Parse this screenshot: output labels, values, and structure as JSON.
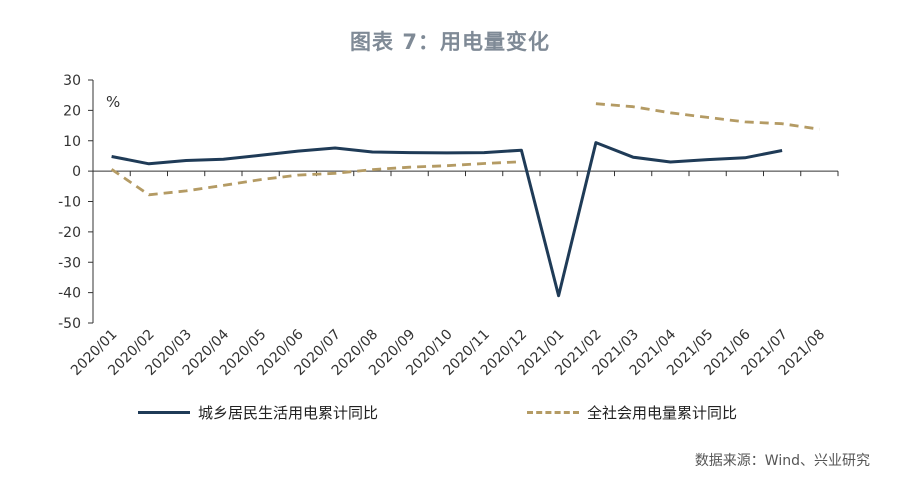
{
  "title": "图表 7：用电量变化",
  "source": "数据来源：Wind、兴业研究",
  "colors": {
    "resident": "#1f3b57",
    "society": "#b49b64",
    "axis": "#333333"
  },
  "chart_data": {
    "type": "line",
    "unit_label": "%",
    "ylim": [
      -50,
      30
    ],
    "yticks": [
      30,
      20,
      10,
      0,
      -10,
      -20,
      -30,
      -40,
      -50
    ],
    "categories": [
      "2020/01",
      "2020/02",
      "2020/03",
      "2020/04",
      "2020/05",
      "2020/06",
      "2020/07",
      "2020/08",
      "2020/09",
      "2020/10",
      "2020/11",
      "2020/12",
      "2021/01",
      "2021/02",
      "2021/03",
      "2021/04",
      "2021/05",
      "2021/06",
      "2021/07",
      "2021/08"
    ],
    "grid": false,
    "legend_position": "bottom",
    "series": [
      {
        "name": "城乡居民生活用电累计同比",
        "style": "solid",
        "values": [
          4.8,
          2.4,
          3.5,
          3.9,
          5.2,
          6.6,
          7.6,
          6.3,
          6.1,
          6.0,
          6.1,
          6.9,
          -41.0,
          9.4,
          4.6,
          3.0,
          3.8,
          4.4,
          6.8,
          null
        ]
      },
      {
        "name": "全社会用电量累计同比",
        "style": "dashed",
        "values": [
          0.6,
          -7.8,
          -6.5,
          -4.7,
          -2.8,
          -1.3,
          -0.7,
          0.5,
          1.3,
          1.8,
          2.5,
          3.1,
          null,
          22.2,
          21.2,
          19.2,
          17.7,
          16.2,
          15.6,
          13.8
        ]
      }
    ]
  }
}
